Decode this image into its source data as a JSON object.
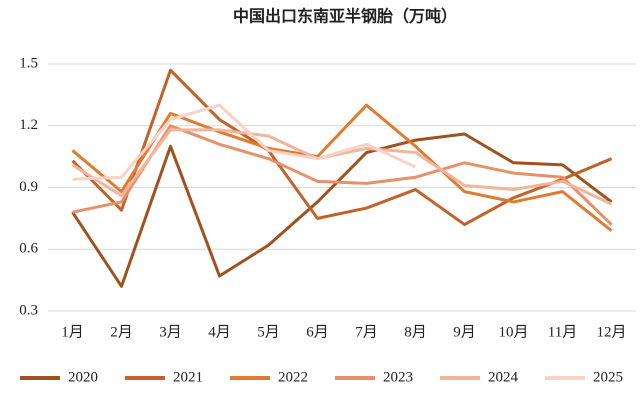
{
  "chart_data": {
    "type": "line",
    "title": "中国出口东南亚半钢胎（万吨）",
    "categories": [
      "1月",
      "2月",
      "3月",
      "4月",
      "5月",
      "6月",
      "7月",
      "8月",
      "9月",
      "10月",
      "11月",
      "12月"
    ],
    "ylim": [
      0.3,
      1.5
    ],
    "yticks": [
      0.3,
      0.6,
      0.9,
      1.2,
      1.5
    ],
    "grid": true,
    "legend": "bottom",
    "series": [
      {
        "name": "2020",
        "color": "#a0521e",
        "values": [
          0.78,
          0.42,
          1.1,
          0.47,
          0.62,
          0.83,
          1.07,
          1.13,
          1.16,
          1.02,
          1.01,
          0.83
        ]
      },
      {
        "name": "2021",
        "color": "#c0622a",
        "values": [
          1.03,
          0.79,
          1.47,
          1.23,
          1.08,
          0.75,
          0.8,
          0.89,
          0.72,
          0.85,
          0.94,
          1.04
        ]
      },
      {
        "name": "2022",
        "color": "#e07b30",
        "values": [
          1.08,
          0.88,
          1.26,
          1.17,
          1.09,
          1.05,
          1.3,
          1.1,
          0.88,
          0.83,
          0.88,
          0.69
        ]
      },
      {
        "name": "2023",
        "color": "#e8906a",
        "values": [
          0.78,
          0.83,
          1.2,
          1.11,
          1.04,
          0.93,
          0.92,
          0.95,
          1.02,
          0.97,
          0.95,
          0.72
        ]
      },
      {
        "name": "2024",
        "color": "#f0b59a",
        "values": [
          1.01,
          0.86,
          1.18,
          1.18,
          1.15,
          1.04,
          1.09,
          1.07,
          0.91,
          0.89,
          0.93,
          0.82
        ]
      },
      {
        "name": "2025",
        "color": "#f6d3c6",
        "values": [
          0.94,
          0.95,
          1.23,
          1.3,
          1.08,
          1.04,
          1.11,
          1.0,
          null,
          null,
          null,
          null
        ]
      }
    ]
  }
}
